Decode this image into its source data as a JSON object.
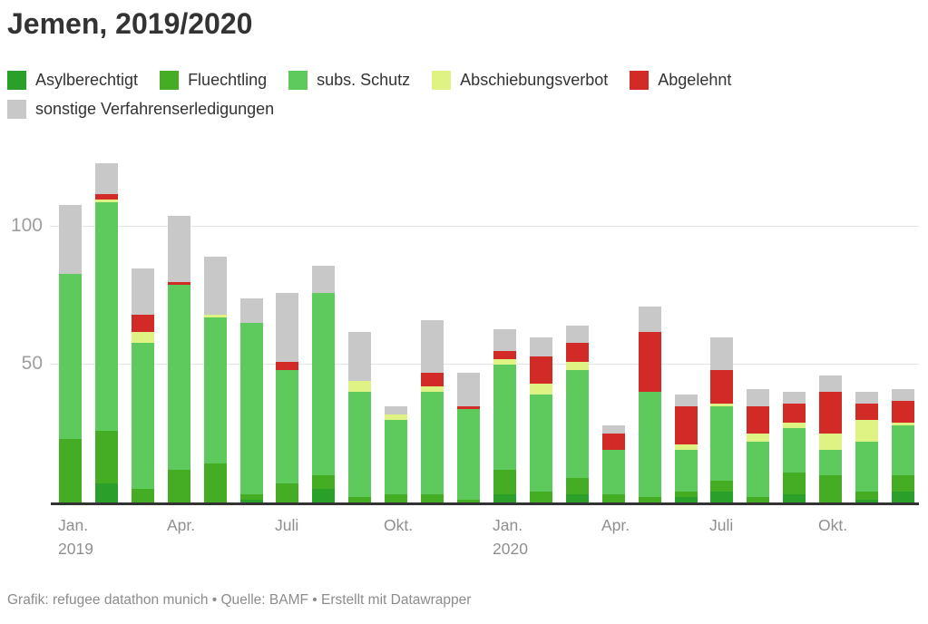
{
  "title": "Jemen, 2019/2020",
  "footer": {
    "text": "Grafik: refugee datathon munich • Quelle: BAMF • Erstellt mit Datawrapper"
  },
  "colors": {
    "asylberechtigt": "#2aa02a",
    "fluechtling": "#45ad24",
    "subs_schutz": "#5ec95c",
    "abschiebungsverbot": "#def383",
    "abgelehnt": "#d22b27",
    "sonstige": "#c8c8c8",
    "grid": "#e4e4e4",
    "axis_text": "#9e9e9e",
    "baseline": "#333333"
  },
  "chart_data": {
    "type": "bar",
    "stacked": true,
    "title": "Jemen, 2019/2020",
    "xlabel": "",
    "ylabel": "",
    "ylim": [
      0,
      127
    ],
    "yticks": [
      50,
      100
    ],
    "grid": true,
    "legend_position": "top",
    "categories": [
      "Jan. 2019",
      "Feb. 2019",
      "Mär. 2019",
      "Apr. 2019",
      "Mai 2019",
      "Juni 2019",
      "Juli 2019",
      "Aug. 2019",
      "Sep. 2019",
      "Okt. 2019",
      "Nov. 2019",
      "Dez. 2019",
      "Jan. 2020",
      "Feb. 2020",
      "Mär. 2020",
      "Apr. 2020",
      "Mai 2020",
      "Juni 2020",
      "Juli 2020",
      "Aug. 2020",
      "Sep. 2020",
      "Okt. 2020",
      "Nov. 2020",
      "Dez. 2020"
    ],
    "series": [
      {
        "name": "Asylberechtigt",
        "color": "#2aa02a",
        "values": [
          0,
          7,
          0,
          0,
          0,
          1,
          0,
          5,
          0,
          0,
          0,
          0,
          3,
          0,
          3,
          0,
          0,
          2,
          4,
          0,
          3,
          0,
          1,
          4
        ]
      },
      {
        "name": "Fluechtling",
        "color": "#45ad24",
        "values": [
          23,
          19,
          5,
          12,
          14,
          2,
          7,
          5,
          2,
          3,
          3,
          1,
          9,
          4,
          6,
          3,
          2,
          2,
          4,
          2,
          8,
          10,
          3,
          6
        ]
      },
      {
        "name": "subs. Schutz",
        "color": "#5ec95c",
        "values": [
          60,
          83,
          53,
          67,
          53,
          62,
          41,
          66,
          38,
          27,
          37,
          33,
          38,
          35,
          39,
          16,
          38,
          15,
          27,
          20,
          16,
          9,
          18,
          18
        ]
      },
      {
        "name": "Abschiebungsverbot",
        "color": "#def383",
        "values": [
          0,
          1,
          4,
          0,
          1,
          0,
          0,
          0,
          4,
          2,
          2,
          0,
          2,
          4,
          3,
          0,
          0,
          2,
          1,
          3,
          2,
          6,
          8,
          1
        ]
      },
      {
        "name": "Abgelehnt",
        "color": "#d22b27",
        "values": [
          0,
          2,
          6,
          1,
          0,
          0,
          3,
          0,
          0,
          0,
          5,
          1,
          3,
          10,
          7,
          6,
          22,
          14,
          12,
          10,
          7,
          15,
          6,
          8
        ]
      },
      {
        "name": "sonstige Verfahrenserledigungen",
        "color": "#c8c8c8",
        "values": [
          25,
          11,
          17,
          24,
          21,
          9,
          25,
          10,
          18,
          3,
          19,
          12,
          8,
          7,
          6,
          3,
          9,
          4,
          12,
          6,
          4,
          6,
          4,
          4
        ]
      }
    ],
    "x_axis_labels": [
      {
        "index": 0,
        "label": "Jan.",
        "year": "2019"
      },
      {
        "index": 3,
        "label": "Apr.",
        "year": ""
      },
      {
        "index": 6,
        "label": "Juli",
        "year": ""
      },
      {
        "index": 9,
        "label": "Okt.",
        "year": ""
      },
      {
        "index": 12,
        "label": "Jan.",
        "year": "2020"
      },
      {
        "index": 15,
        "label": "Apr.",
        "year": ""
      },
      {
        "index": 18,
        "label": "Juli",
        "year": ""
      },
      {
        "index": 21,
        "label": "Okt.",
        "year": ""
      }
    ],
    "ytick_labels": [
      "50",
      "100"
    ]
  }
}
